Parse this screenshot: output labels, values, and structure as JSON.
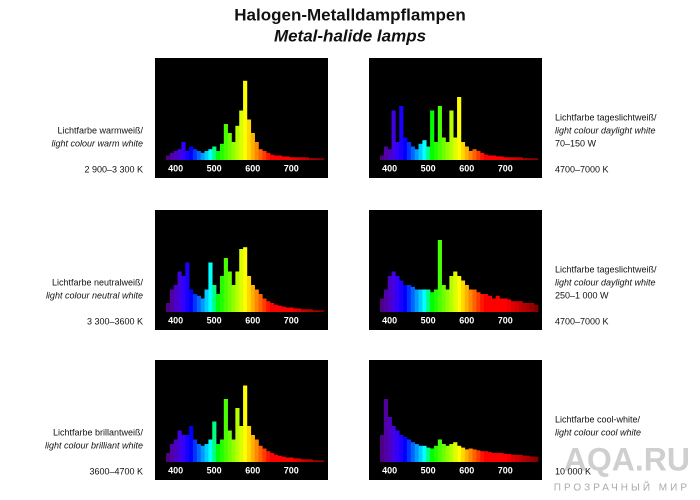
{
  "header": {
    "title": "Halogen-Metalldampflampen",
    "subtitle": "Metal-halide lamps"
  },
  "watermark": {
    "text": "AQA.RU",
    "subtext": "ПРОЗРАЧНЫЙ МИР"
  },
  "chart_data": [
    {
      "type": "bar",
      "label_lines": [
        "Lichtfarbe warmweiß/",
        "light colour warm white"
      ],
      "temperature": "2 900–3 300 K",
      "x": [
        380,
        390,
        400,
        410,
        420,
        430,
        440,
        450,
        460,
        470,
        480,
        490,
        500,
        510,
        520,
        530,
        540,
        550,
        560,
        570,
        580,
        590,
        600,
        610,
        620,
        630,
        640,
        650,
        660,
        670,
        680,
        690,
        700,
        710,
        720,
        730,
        740,
        750,
        760,
        770,
        780
      ],
      "values": [
        5,
        8,
        10,
        12,
        20,
        10,
        15,
        12,
        10,
        8,
        10,
        12,
        15,
        10,
        18,
        40,
        30,
        20,
        38,
        55,
        88,
        45,
        30,
        20,
        12,
        10,
        8,
        6,
        5,
        5,
        4,
        4,
        3,
        3,
        3,
        3,
        3,
        2,
        2,
        2,
        2
      ],
      "xlim": [
        375,
        785
      ],
      "ylim": [
        0,
        100
      ],
      "xticks": [
        400,
        500,
        600,
        700
      ]
    },
    {
      "type": "bar",
      "label_lines": [
        "Lichtfarbe tageslichtweiß/",
        "light colour daylight white"
      ],
      "wattage": "70–150 W",
      "temperature": "4700–7000 K",
      "x": [
        380,
        390,
        400,
        410,
        420,
        430,
        440,
        450,
        460,
        470,
        480,
        490,
        500,
        510,
        520,
        530,
        540,
        550,
        560,
        570,
        580,
        590,
        600,
        610,
        620,
        630,
        640,
        650,
        660,
        670,
        680,
        690,
        700,
        710,
        720,
        730,
        740,
        750,
        760,
        770,
        780
      ],
      "values": [
        5,
        15,
        12,
        55,
        20,
        60,
        25,
        20,
        15,
        12,
        18,
        22,
        15,
        55,
        20,
        60,
        25,
        20,
        55,
        25,
        70,
        20,
        15,
        10,
        12,
        10,
        8,
        6,
        5,
        5,
        4,
        4,
        3,
        3,
        3,
        3,
        3,
        2,
        2,
        2,
        2
      ],
      "xlim": [
        375,
        785
      ],
      "ylim": [
        0,
        100
      ],
      "xticks": [
        400,
        500,
        600,
        700
      ]
    },
    {
      "type": "bar",
      "label_lines": [
        "Lichtfarbe neutralweiß/",
        "light colour neutral white"
      ],
      "temperature": "3 300–3600 K",
      "x": [
        380,
        390,
        400,
        410,
        420,
        430,
        440,
        450,
        460,
        470,
        480,
        490,
        500,
        510,
        520,
        530,
        540,
        550,
        560,
        570,
        580,
        590,
        600,
        610,
        620,
        630,
        640,
        650,
        660,
        670,
        680,
        690,
        700,
        710,
        720,
        730,
        740,
        750,
        760,
        770,
        780
      ],
      "values": [
        10,
        25,
        30,
        45,
        40,
        55,
        25,
        20,
        18,
        15,
        25,
        55,
        30,
        20,
        40,
        60,
        45,
        30,
        45,
        70,
        72,
        40,
        30,
        25,
        20,
        15,
        12,
        10,
        8,
        7,
        6,
        5,
        5,
        4,
        4,
        3,
        3,
        3,
        2,
        2,
        2
      ],
      "xlim": [
        375,
        785
      ],
      "ylim": [
        0,
        100
      ],
      "xticks": [
        400,
        500,
        600,
        700
      ]
    },
    {
      "type": "bar",
      "label_lines": [
        "Lichtfarbe tageslichtweiß/",
        "light colour daylight white"
      ],
      "wattage": "250–1 000 W",
      "temperature": "4700–7000 K",
      "x": [
        380,
        390,
        400,
        410,
        420,
        430,
        440,
        450,
        460,
        470,
        480,
        490,
        500,
        510,
        520,
        530,
        540,
        550,
        560,
        570,
        580,
        590,
        600,
        610,
        620,
        630,
        640,
        650,
        660,
        670,
        680,
        690,
        700,
        710,
        720,
        730,
        740,
        750,
        760,
        770,
        780
      ],
      "values": [
        15,
        25,
        40,
        45,
        40,
        35,
        30,
        30,
        28,
        25,
        25,
        25,
        25,
        22,
        25,
        80,
        30,
        25,
        40,
        45,
        40,
        35,
        30,
        25,
        25,
        22,
        20,
        20,
        18,
        15,
        18,
        15,
        15,
        14,
        12,
        12,
        12,
        10,
        10,
        10,
        8
      ],
      "xlim": [
        375,
        785
      ],
      "ylim": [
        0,
        100
      ],
      "xticks": [
        400,
        500,
        600,
        700
      ]
    },
    {
      "type": "bar",
      "label_lines": [
        "Lichtfarbe brillantweiß/",
        "light colour brilliant white"
      ],
      "temperature": "3600–4700 K",
      "x": [
        380,
        390,
        400,
        410,
        420,
        430,
        440,
        450,
        460,
        470,
        480,
        490,
        500,
        510,
        520,
        530,
        540,
        550,
        560,
        570,
        580,
        590,
        600,
        610,
        620,
        630,
        640,
        650,
        660,
        670,
        680,
        690,
        700,
        710,
        720,
        730,
        740,
        750,
        760,
        770,
        780
      ],
      "values": [
        10,
        20,
        25,
        35,
        30,
        30,
        40,
        25,
        20,
        18,
        20,
        25,
        45,
        20,
        25,
        70,
        35,
        25,
        60,
        40,
        85,
        40,
        30,
        25,
        18,
        15,
        12,
        10,
        8,
        7,
        6,
        5,
        5,
        4,
        4,
        3,
        3,
        3,
        2,
        2,
        2
      ],
      "xlim": [
        375,
        785
      ],
      "ylim": [
        0,
        100
      ],
      "xticks": [
        400,
        500,
        600,
        700
      ]
    },
    {
      "type": "bar",
      "label_lines": [
        "Lichtfarbe cool-white/",
        "light colour cool white"
      ],
      "temperature": "10 000 K",
      "x": [
        380,
        390,
        400,
        410,
        420,
        430,
        440,
        450,
        460,
        470,
        480,
        490,
        500,
        510,
        520,
        530,
        540,
        550,
        560,
        570,
        580,
        590,
        600,
        610,
        620,
        630,
        640,
        650,
        660,
        670,
        680,
        690,
        700,
        710,
        720,
        730,
        740,
        750,
        760,
        770,
        780
      ],
      "values": [
        30,
        70,
        50,
        40,
        35,
        30,
        28,
        25,
        22,
        20,
        18,
        18,
        16,
        15,
        18,
        25,
        20,
        18,
        20,
        22,
        18,
        16,
        14,
        15,
        14,
        13,
        12,
        12,
        11,
        10,
        10,
        10,
        9,
        9,
        8,
        8,
        8,
        7,
        7,
        6,
        6
      ],
      "xlim": [
        375,
        785
      ],
      "ylim": [
        0,
        100
      ],
      "xticks": [
        400,
        500,
        600,
        700
      ]
    }
  ]
}
